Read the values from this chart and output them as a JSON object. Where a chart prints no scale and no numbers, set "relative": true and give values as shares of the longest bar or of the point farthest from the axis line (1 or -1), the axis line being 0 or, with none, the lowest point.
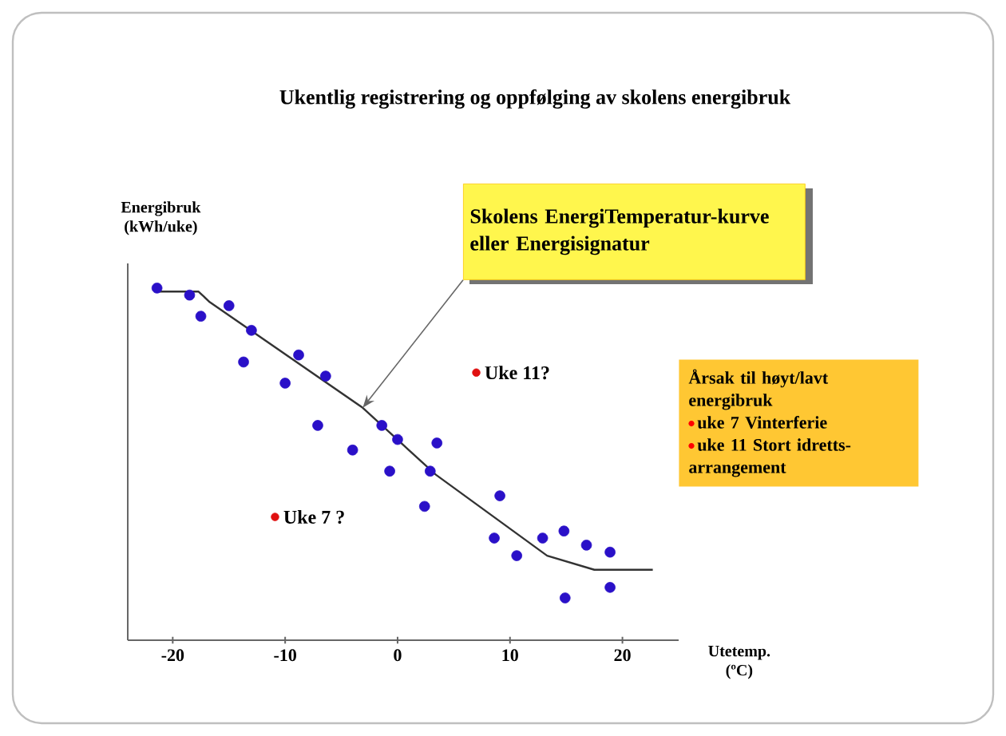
{
  "chart_data": {
    "type": "scatter",
    "title": "Ukentlig registrering  og oppfølging av skolens energibruk",
    "ylabel": "Energibruk (kWh/uke)",
    "xlabel": "Utetemp. (ºC)",
    "relative": true,
    "xlim": [
      -24,
      25
    ],
    "xticks": [
      -20,
      -10,
      0,
      10,
      20
    ],
    "grid": false,
    "series": [
      {
        "color": "#2a10c8",
        "x": [
          -21.4,
          -18.5,
          -17.5,
          -15.0,
          -13.0,
          -13.7,
          -8.8,
          -10.0,
          -6.4,
          -7.1,
          -4.0,
          -1.4,
          0.0,
          -0.7,
          3.5,
          2.9,
          2.4,
          9.1,
          8.6,
          10.6,
          12.9,
          14.8,
          16.8,
          18.9,
          14.9,
          18.9
        ],
        "values": [
          1.0,
          0.98,
          0.92,
          0.95,
          0.88,
          0.79,
          0.81,
          0.73,
          0.75,
          0.61,
          0.54,
          0.61,
          0.57,
          0.48,
          0.56,
          0.48,
          0.38,
          0.41,
          0.29,
          0.24,
          0.29,
          0.31,
          0.27,
          0.25,
          0.12,
          0.15
        ]
      },
      {
        "color": "#e01010",
        "x": [
          7.0,
          -10.9
        ],
        "values": [
          0.76,
          0.35
        ]
      },
      {
        "type": "line",
        "color": "#333333",
        "marker": "none",
        "x": [
          -21.4,
          -17.7,
          -16.7,
          -3.1,
          3.4,
          13.3,
          17.5,
          22.7
        ],
        "values": [
          0.99,
          0.99,
          0.96,
          0.66,
          0.47,
          0.24,
          0.2,
          0.2
        ]
      }
    ],
    "annotations": [
      {
        "text": "Skolens EnergiTemperatur-kurve eller Energisignatur",
        "x": -3.1,
        "y": 0.66
      },
      {
        "text": "Uke 11?",
        "x": 7.0,
        "y": 0.76
      },
      {
        "text": "Uke 7 ?",
        "x": -10.9,
        "y": 0.35
      },
      "Årsak til høyt/lavt energibruk",
      "uke 7   Vinterferie",
      "uke 11 Stort idretts-arrangement"
    ]
  }
}
